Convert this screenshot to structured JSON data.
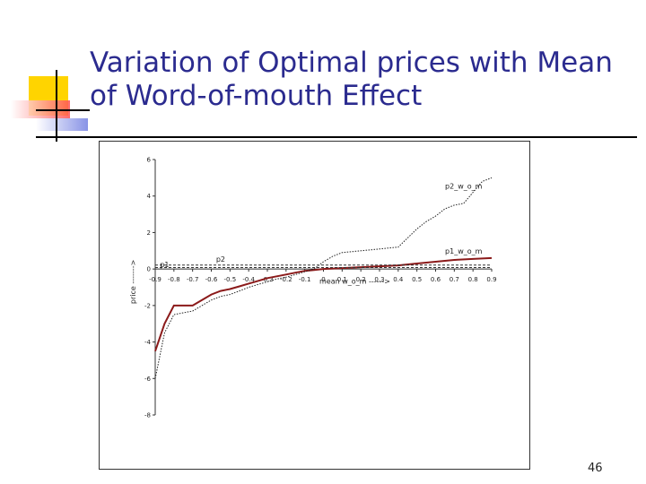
{
  "slide": {
    "title": "Variation of Optimal prices with Mean of Word-of-mouth Effect",
    "page_number": "46"
  },
  "colors": {
    "title": "#2b2b8f",
    "p1_line": "#8b1a1a",
    "p2_line": "#202020",
    "deco_yellow": "#ffd400",
    "deco_red": "#ff5050",
    "deco_blue": "#6a78e0"
  },
  "chart_data": {
    "type": "line",
    "xlabel": "mean w_o_m ------>",
    "ylabel": "price ------->",
    "xlim": [
      -0.9,
      0.9
    ],
    "ylim": [
      -8,
      6
    ],
    "x_ticks": [
      "-0.9",
      "-0.8",
      "-0.7",
      "-0.6",
      "-0.5",
      "-0.4",
      "-0.3",
      "-0.2",
      "-0.1",
      "0",
      "0.1",
      "0.2",
      "0.3",
      "0.4",
      "0.5",
      "0.6",
      "0.7",
      "0.8",
      "0.9"
    ],
    "y_ticks": [
      "6",
      "4",
      "2",
      "0",
      "-2",
      "-4",
      "-6",
      "-8"
    ],
    "annotations": [
      {
        "text": "p2_w_o_m",
        "x": 0.75,
        "y": 4.4
      },
      {
        "text": "p1_w_o_m",
        "x": 0.75,
        "y": 0.85
      },
      {
        "text": "p2",
        "x": -0.55,
        "y": 0.4
      },
      {
        "text": "p1",
        "x": -0.85,
        "y": 0.1
      }
    ],
    "series": [
      {
        "name": "p1_w_o_m",
        "style": "solid",
        "x": [
          -0.9,
          -0.85,
          -0.8,
          -0.75,
          -0.7,
          -0.65,
          -0.6,
          -0.55,
          -0.5,
          -0.45,
          -0.4,
          -0.35,
          -0.3,
          -0.25,
          -0.2,
          -0.15,
          -0.1,
          -0.05,
          0,
          0.1,
          0.2,
          0.3,
          0.4,
          0.5,
          0.6,
          0.7,
          0.8,
          0.9
        ],
        "values": [
          -4.5,
          -3.0,
          -2.0,
          -2.0,
          -2.0,
          -1.7,
          -1.4,
          -1.2,
          -1.1,
          -0.95,
          -0.8,
          -0.65,
          -0.5,
          -0.4,
          -0.3,
          -0.2,
          -0.1,
          -0.05,
          0.0,
          0.05,
          0.1,
          0.15,
          0.2,
          0.3,
          0.4,
          0.5,
          0.55,
          0.6
        ]
      },
      {
        "name": "p2_w_o_m",
        "style": "dotted",
        "x": [
          -0.9,
          -0.85,
          -0.8,
          -0.75,
          -0.7,
          -0.65,
          -0.6,
          -0.55,
          -0.5,
          -0.45,
          -0.4,
          -0.35,
          -0.3,
          -0.25,
          -0.2,
          -0.15,
          -0.1,
          -0.05,
          0,
          0.05,
          0.1,
          0.2,
          0.3,
          0.35,
          0.4,
          0.45,
          0.5,
          0.55,
          0.6,
          0.65,
          0.7,
          0.75,
          0.8,
          0.85,
          0.9
        ],
        "values": [
          -6.0,
          -3.5,
          -2.5,
          -2.4,
          -2.3,
          -2.0,
          -1.7,
          -1.5,
          -1.4,
          -1.2,
          -1.0,
          -0.85,
          -0.7,
          -0.55,
          -0.45,
          -0.3,
          -0.15,
          0.0,
          0.4,
          0.7,
          0.9,
          1.0,
          1.1,
          1.15,
          1.2,
          1.7,
          2.2,
          2.6,
          2.9,
          3.3,
          3.5,
          3.6,
          4.2,
          4.8,
          5.0
        ]
      },
      {
        "name": "p1",
        "style": "dashed",
        "x": [
          -0.9,
          0.9
        ],
        "values": [
          0.08,
          0.08
        ]
      },
      {
        "name": "p2",
        "style": "dashed",
        "x": [
          -0.9,
          0.9
        ],
        "values": [
          0.22,
          0.22
        ]
      }
    ]
  }
}
